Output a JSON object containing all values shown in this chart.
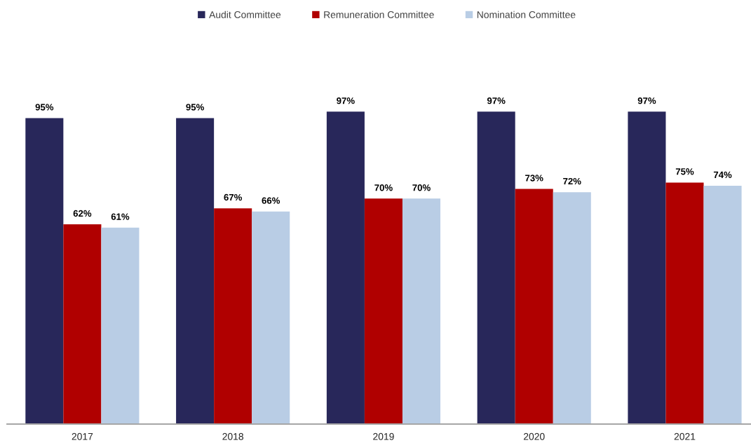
{
  "chart_data": {
    "type": "bar",
    "categories": [
      "2017",
      "2018",
      "2019",
      "2020",
      "2021"
    ],
    "series": [
      {
        "name": "Audit Committee",
        "color": "#28275a",
        "values": [
          95,
          95,
          97,
          97,
          97
        ],
        "value_labels": [
          "95%",
          "95%",
          "97%",
          "97%",
          "97%"
        ]
      },
      {
        "name": "Remuneration Committee",
        "color": "#b00000",
        "values": [
          62,
          67,
          70,
          73,
          75
        ],
        "value_labels": [
          "62%",
          "67%",
          "70%",
          "73%",
          "75%"
        ]
      },
      {
        "name": "Nomination Committee",
        "color": "#b9cde5",
        "values": [
          61,
          66,
          70,
          72,
          74
        ],
        "value_labels": [
          "61%",
          "66%",
          "70%",
          "72%",
          "74%"
        ]
      }
    ],
    "legend": "top",
    "tick_labels": "x"
  }
}
